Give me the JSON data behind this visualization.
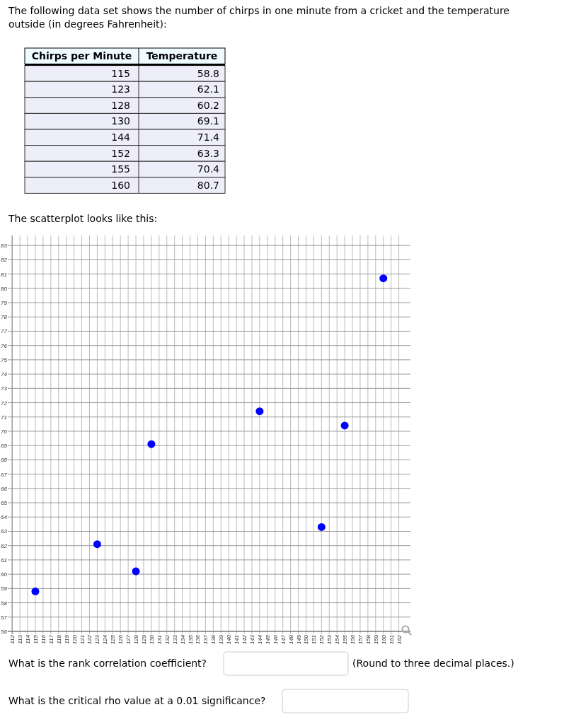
{
  "chart_data": [
    {
      "type": "other",
      "title": "The following data set shows the number of chirps in one minute from a cricket and the temperature outside (in degrees Fahrenheit):",
      "annotations": [
        "Chirps per Minute",
        "Temperature",
        "115",
        "58.8",
        "123",
        "62.1",
        "128",
        "60.2",
        "130",
        "69.1",
        "144",
        "71.4",
        "152",
        "63.3",
        "155",
        "70.4",
        "160",
        "80.7"
      ]
    },
    {
      "type": "scatter",
      "title": "The scatterplot looks like this:",
      "x": [
        115,
        123,
        128,
        130,
        144,
        152,
        155,
        160
      ],
      "series": [
        {
          "color": "#0000ff",
          "values": [
            58.8,
            62.1,
            60.2,
            69.1,
            71.4,
            63.3,
            70.4,
            80.7
          ]
        }
      ],
      "marker": "circle",
      "grid": true,
      "xlim": [
        112,
        163.5
      ],
      "ylim": [
        56,
        83.7
      ],
      "xticks": [
        112,
        113,
        114,
        115,
        116,
        117,
        118,
        119,
        120,
        121,
        122,
        123,
        124,
        125,
        126,
        127,
        128,
        129,
        130,
        131,
        132,
        133,
        134,
        135,
        136,
        137,
        138,
        139,
        140,
        141,
        142,
        143,
        144,
        145,
        146,
        147,
        148,
        149,
        150,
        151,
        152,
        153,
        154,
        155,
        156,
        157,
        158,
        159,
        160,
        161,
        162
      ],
      "yticks": [
        56,
        57,
        58,
        59,
        60,
        61,
        62,
        63,
        64,
        65,
        66,
        67,
        68,
        69,
        70,
        71,
        72,
        73,
        74,
        75,
        76,
        77,
        78,
        79,
        80,
        81,
        82,
        83
      ],
      "annotations": [
        "What is the rank correlation coefficient?",
        "(Round to three decimal places.)",
        "What is the critical rho value at a 0.01 significance?"
      ]
    }
  ]
}
